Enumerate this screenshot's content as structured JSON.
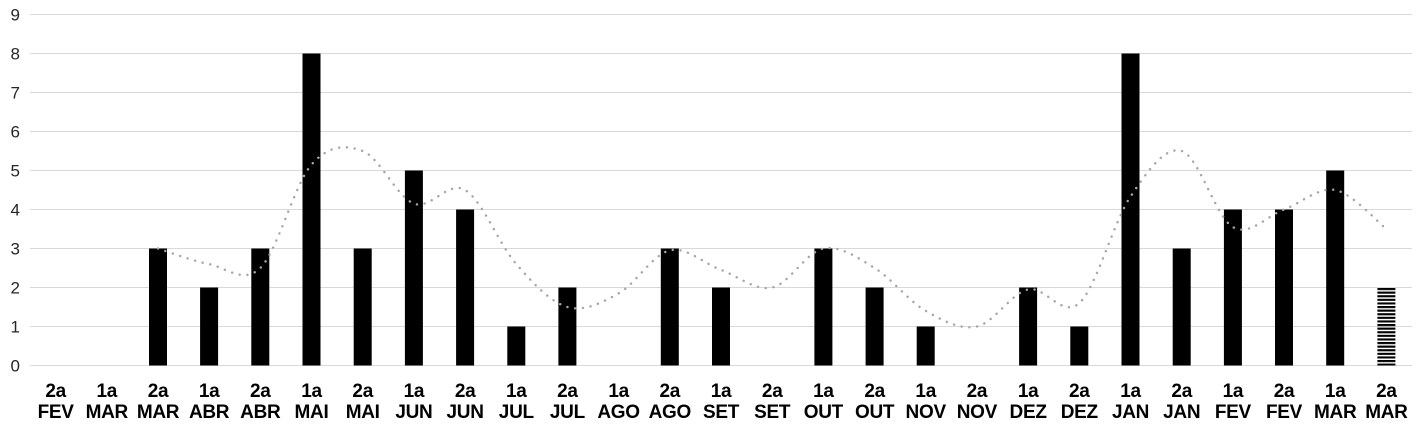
{
  "chart_data": {
    "type": "bar",
    "title": "",
    "xlabel": "",
    "ylabel": "",
    "ylim": [
      0,
      9
    ],
    "y_tick_labels": [
      "0",
      "1",
      "2",
      "3",
      "4",
      "5",
      "6",
      "7",
      "8",
      "9"
    ],
    "grid": "horizontal",
    "legend": "none",
    "categories": [
      {
        "period": "2a",
        "month": "FEV"
      },
      {
        "period": "1a",
        "month": "MAR"
      },
      {
        "period": "2a",
        "month": "MAR"
      },
      {
        "period": "1a",
        "month": "ABR"
      },
      {
        "period": "2a",
        "month": "ABR"
      },
      {
        "period": "1a",
        "month": "MAI"
      },
      {
        "period": "2a",
        "month": "MAI"
      },
      {
        "period": "1a",
        "month": "JUN"
      },
      {
        "period": "2a",
        "month": "JUN"
      },
      {
        "period": "1a",
        "month": "JUL"
      },
      {
        "period": "2a",
        "month": "JUL"
      },
      {
        "period": "1a",
        "month": "AGO"
      },
      {
        "period": "2a",
        "month": "AGO"
      },
      {
        "period": "1a",
        "month": "SET"
      },
      {
        "period": "2a",
        "month": "SET"
      },
      {
        "period": "1a",
        "month": "OUT"
      },
      {
        "period": "2a",
        "month": "OUT"
      },
      {
        "period": "1a",
        "month": "NOV"
      },
      {
        "period": "2a",
        "month": "NOV"
      },
      {
        "period": "1a",
        "month": "DEZ"
      },
      {
        "period": "2a",
        "month": "DEZ"
      },
      {
        "period": "1a",
        "month": "JAN"
      },
      {
        "period": "2a",
        "month": "JAN"
      },
      {
        "period": "1a",
        "month": "FEV"
      },
      {
        "period": "2a",
        "month": "FEV"
      },
      {
        "period": "1a",
        "month": "MAR"
      },
      {
        "period": "2a",
        "month": "MAR"
      }
    ],
    "bar_values": [
      0,
      0,
      3,
      2,
      3,
      8,
      3,
      5,
      4,
      1,
      2,
      0,
      3,
      2,
      0,
      3,
      2,
      1,
      0,
      2,
      1,
      8,
      3,
      4,
      4,
      5,
      2
    ],
    "hatched_bar_index": 26,
    "trend_line": {
      "style": "dotted",
      "start_index": 2,
      "values": [
        3.0,
        2.6,
        2.5,
        5.15,
        5.5,
        4.15,
        4.5,
        2.6,
        1.5,
        1.85,
        2.95,
        2.45,
        2.0,
        3.0,
        2.5,
        1.4,
        1.0,
        1.95,
        1.6,
        4.33,
        5.5,
        3.55,
        4.0,
        4.5,
        3.5
      ]
    },
    "colors": {
      "bar": "#000000",
      "hatched_bar_stripe": "#000000",
      "trend": "#a6a6a6",
      "gridline": "#d9d9d9",
      "y_label": "#262626",
      "x_label": "#000000",
      "background": "#ffffff"
    }
  }
}
